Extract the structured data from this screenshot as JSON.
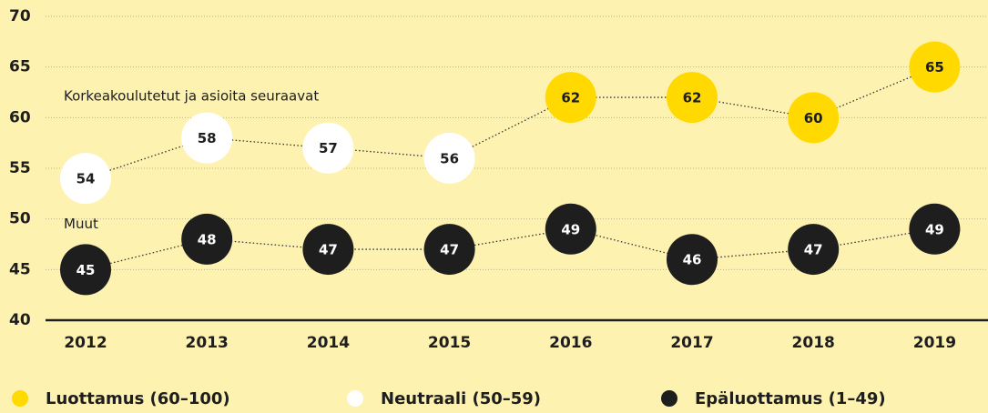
{
  "chart_data": {
    "type": "line",
    "categories": [
      "2012",
      "2013",
      "2014",
      "2015",
      "2016",
      "2017",
      "2018",
      "2019"
    ],
    "series": [
      {
        "name": "Korkeakoulutetut ja asioita seuraavat",
        "color": "#333333",
        "values": [
          54,
          58,
          57,
          56,
          62,
          62,
          60,
          65
        ],
        "point_colors": [
          "#ffffff",
          "#ffffff",
          "#ffffff",
          "#ffffff",
          "#ffd900",
          "#ffd900",
          "#ffd900",
          "#ffd900"
        ]
      },
      {
        "name": "Muut",
        "color": "#333333",
        "values": [
          45,
          48,
          47,
          47,
          49,
          46,
          47,
          49
        ],
        "point_colors": [
          "#1e1e1e",
          "#1e1e1e",
          "#1e1e1e",
          "#1e1e1e",
          "#1e1e1e",
          "#1e1e1e",
          "#1e1e1e",
          "#1e1e1e"
        ]
      }
    ],
    "legend": [
      {
        "name": "Luottamus (60–100)",
        "color": "#ffd900"
      },
      {
        "name": "Neutraali (50–59)",
        "color": "#ffffff"
      },
      {
        "name": "Epäluottamus (1–49)",
        "color": "#1e1e1e"
      }
    ],
    "ylim": [
      40,
      70
    ],
    "yticks": [
      40,
      45,
      50,
      55,
      60,
      65,
      70
    ],
    "grid": true
  }
}
